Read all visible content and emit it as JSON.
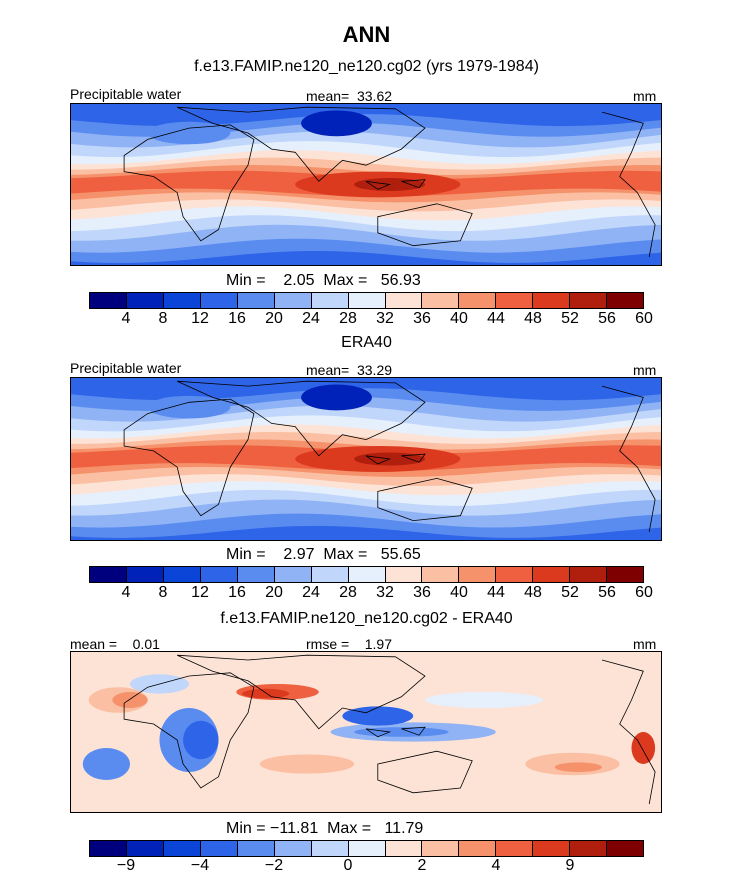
{
  "page": {
    "title": "ANN"
  },
  "panels": [
    {
      "subtitle": "f.e13.FAMIP.ne120_ne120.cg02 (yrs 1979-1984)",
      "left_label": "Precipitable water",
      "center_label": "mean=  33.62",
      "right_label": "mm",
      "minmax_label": "Min =    2.05  Max =   56.93",
      "field": "model",
      "colorbar_ticks": [
        "4",
        "8",
        "12",
        "16",
        "20",
        "24",
        "28",
        "32",
        "36",
        "40",
        "44",
        "48",
        "52",
        "56",
        "60"
      ]
    },
    {
      "subtitle": "ERA40",
      "left_label": "Precipitable water",
      "center_label": "mean=  33.29",
      "right_label": "mm",
      "minmax_label": "Min =    2.97  Max =   55.65",
      "field": "obs",
      "colorbar_ticks": [
        "4",
        "8",
        "12",
        "16",
        "20",
        "24",
        "28",
        "32",
        "36",
        "40",
        "44",
        "48",
        "52",
        "56",
        "60"
      ]
    },
    {
      "subtitle": "f.e13.FAMIP.ne120_ne120.cg02 - ERA40",
      "left_label": "mean =    0.01",
      "center_label": "rmse =    1.97",
      "right_label": "mm",
      "minmax_label": "Min = −11.81  Max =   11.79",
      "field": "diff",
      "colorbar_ticks": [
        "−9",
        "",
        "−4",
        "",
        "−2",
        "",
        "0",
        "",
        "2",
        "",
        "4",
        "",
        "9",
        ""
      ]
    }
  ],
  "colorbar": {
    "colors": [
      "#00007f",
      "#0022b8",
      "#0a45d8",
      "#2e64e8",
      "#5a8cf0",
      "#8fb3f5",
      "#c0d6fa",
      "#e6f0fd",
      "#fde3d6",
      "#fbc0a4",
      "#f5926b",
      "#ee6040",
      "#dc3a1e",
      "#b01e0e",
      "#7f0000"
    ]
  }
}
